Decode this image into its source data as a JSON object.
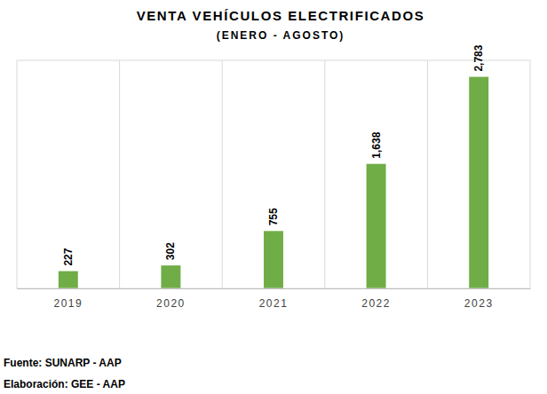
{
  "chart_data": {
    "type": "bar",
    "title": "VENTA VEHÍCULOS ELECTRIFICADOS",
    "subtitle": "(ENERO - AGOSTO)",
    "categories": [
      "2019",
      "2020",
      "2021",
      "2022",
      "2023"
    ],
    "values": [
      227,
      302,
      755,
      1638,
      2783
    ],
    "value_labels": [
      "227",
      "302",
      "755",
      "1,638",
      "2,783"
    ],
    "color": "#70ad47",
    "ylim": [
      0,
      3000
    ],
    "grid": true,
    "data_labels": true,
    "tick_labels": "x",
    "annotations": [
      "Fuente: SUNARP - AAP",
      "Elaboración: GEE - AAP"
    ]
  }
}
